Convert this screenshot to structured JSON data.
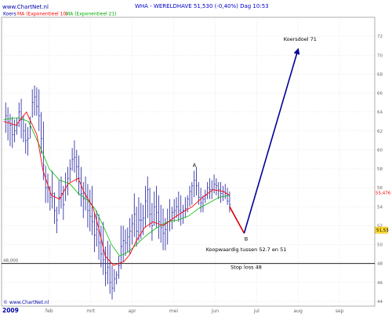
{
  "header": {
    "watermark": "www.ChartNet.nl",
    "title": "WHA - WERELDHAVE    51,530 (-0,40%)    Dag  10:53",
    "legend_koers": "Koers",
    "legend_ma10": "MA (Exponentieel 10)",
    "legend_ma21": "MA (Exponentieel 21)"
  },
  "footer": {
    "copyright": "© www.ChartNet.nl",
    "year": "2009"
  },
  "colors": {
    "price": "#3333aa",
    "ma10": "#ff0000",
    "ma21": "#00bb00",
    "forecast_up": "#000099",
    "forecast_down": "#dd0000",
    "title": "#0000cc",
    "legend_ma10": "#ff0000",
    "legend_ma21": "#00aa00",
    "axis_text": "#666666",
    "badge_bg": "#ffdd33"
  },
  "chart_data": {
    "type": "line",
    "x_labels": [
      "feb",
      "mrt",
      "apr",
      "mei",
      "jun",
      "jul",
      "aug",
      "sep"
    ],
    "y_ticks": [
      44,
      46,
      48,
      50,
      52,
      54,
      56,
      58,
      60,
      62,
      64,
      66,
      68,
      70,
      72
    ],
    "ylim": [
      43.5,
      74
    ],
    "x_month_values": [
      1,
      2,
      3,
      4,
      5,
      6,
      7,
      8
    ],
    "xlim": [
      -0.15,
      8.85
    ],
    "price_labels": [
      "55,476",
      "51,53"
    ],
    "price_label_values": [
      55.476,
      51.53
    ],
    "hline": {
      "value": 48.0,
      "left_label": "48,000",
      "label": "Stop loss 48"
    },
    "annotations": [
      {
        "text": "Koersdoel 71",
        "x": 7.05,
        "y": 71.5
      },
      {
        "text": "A",
        "x": 4.5,
        "y": 58.2
      },
      {
        "text": "B",
        "x": 5.75,
        "y": 50.4
      },
      {
        "text": "Koopwaardig tussen 52.7 en 51",
        "x": 5.75,
        "y": 49.3
      }
    ],
    "forecast_down": [
      [
        5.35,
        54.0
      ],
      [
        5.7,
        51.2
      ]
    ],
    "forecast_up": [
      [
        5.7,
        51.2
      ],
      [
        7.0,
        70.6
      ]
    ],
    "series": [
      {
        "kind": "ohlc",
        "high": [
          65.0,
          64.5,
          63.8,
          63.5,
          63.2,
          63.4,
          65.0,
          65.4,
          63.6,
          62.8,
          62.4,
          63.5,
          66.4,
          66.8,
          66.6,
          66.4,
          64.0,
          63.0,
          58.3,
          57.5,
          56.2,
          57.8,
          55.5,
          54.0,
          56.8,
          57.2,
          56.2,
          57.6,
          58.2,
          59.0,
          60.2,
          61.0,
          60.0,
          59.4,
          58.2,
          56.6,
          57.2,
          56.4,
          55.8,
          56.2,
          53.4,
          53.6,
          53.2,
          52.0,
          52.4,
          49.8,
          50.4,
          50.0,
          47.8,
          47.4,
          47.2,
          48.8,
          52.0,
          52.0,
          51.6,
          51.8,
          52.8,
          53.2,
          55.4,
          54.0,
          55.0,
          54.4,
          54.2,
          56.2,
          57.2,
          56.0,
          54.4,
          55.6,
          56.2,
          55.2,
          54.2,
          53.8,
          52.8,
          53.8,
          54.8,
          54.0,
          54.8,
          55.0,
          55.6,
          55.2,
          54.2,
          55.0,
          55.2,
          56.2,
          56.6,
          57.8,
          58.2,
          56.6,
          56.0,
          55.2,
          55.8,
          56.6,
          57.0,
          56.8,
          57.4,
          57.0,
          56.6,
          56.6,
          56.2,
          56.4,
          56.0,
          55.6
        ],
        "low": [
          61.8,
          61.0,
          60.4,
          60.2,
          60.8,
          61.6,
          62.4,
          61.2,
          60.8,
          59.6,
          59.4,
          61.2,
          63.4,
          63.6,
          63.6,
          62.0,
          59.6,
          56.8,
          54.4,
          54.4,
          53.6,
          53.8,
          52.2,
          51.2,
          53.2,
          53.8,
          52.6,
          54.6,
          55.2,
          56.6,
          57.8,
          57.6,
          56.6,
          55.2,
          54.0,
          52.8,
          53.6,
          51.8,
          51.4,
          51.0,
          49.2,
          49.8,
          48.4,
          47.6,
          46.8,
          45.6,
          45.8,
          44.8,
          44.2,
          45.0,
          45.8,
          46.4,
          47.4,
          48.2,
          48.8,
          49.2,
          49.0,
          50.0,
          50.8,
          49.8,
          50.4,
          50.6,
          51.0,
          51.8,
          52.8,
          51.8,
          50.4,
          52.0,
          51.8,
          50.6,
          50.2,
          49.4,
          49.4,
          50.0,
          51.4,
          51.6,
          52.4,
          52.8,
          52.4,
          52.0,
          52.2,
          52.8,
          53.4,
          54.0,
          54.2,
          55.0,
          55.2,
          54.2,
          53.4,
          53.4,
          54.4,
          54.8,
          54.8,
          54.8,
          55.4,
          55.2,
          54.8,
          54.4,
          54.6,
          54.8,
          54.2,
          53.4
        ],
        "close": [
          63.6,
          63.0,
          62.6,
          61.6,
          62.0,
          62.6,
          64.0,
          63.2,
          62.0,
          61.0,
          61.2,
          62.4,
          65.0,
          65.6,
          64.6,
          63.6,
          61.2,
          58.4,
          56.0,
          56.0,
          55.0,
          55.4,
          53.6,
          52.6,
          55.0,
          55.4,
          54.2,
          56.0,
          57.0,
          58.0,
          59.0,
          59.2,
          58.2,
          57.0,
          55.4,
          54.8,
          55.2,
          53.6,
          53.0,
          52.4,
          51.0,
          51.6,
          50.2,
          49.0,
          48.4,
          47.0,
          47.6,
          46.0,
          45.4,
          46.4,
          46.8,
          47.8,
          49.8,
          50.4,
          50.2,
          50.8,
          51.4,
          52.2,
          53.2,
          51.4,
          52.6,
          52.6,
          52.8,
          54.6,
          55.8,
          53.2,
          52.0,
          54.0,
          53.4,
          52.4,
          51.8,
          51.2,
          51.6,
          52.4,
          52.6,
          53.4,
          53.6,
          54.0,
          53.6,
          53.4,
          53.6,
          53.8,
          54.8,
          55.6,
          56.2,
          56.8,
          56.2,
          55.0,
          54.4,
          54.8,
          55.2,
          56.0,
          55.8,
          55.8,
          56.4,
          56.2,
          55.8,
          55.4,
          55.6,
          55.4,
          54.6,
          54.2
        ]
      },
      {
        "name": "MA (Exponentieel 10)",
        "values": [
          [
            -0.1,
            63.0
          ],
          [
            0.2,
            62.6
          ],
          [
            0.45,
            64.0
          ],
          [
            0.7,
            61.6
          ],
          [
            0.85,
            57.8
          ],
          [
            1.05,
            55.2
          ],
          [
            1.25,
            54.8
          ],
          [
            1.45,
            56.4
          ],
          [
            1.7,
            57.0
          ],
          [
            1.85,
            55.4
          ],
          [
            2.05,
            54.0
          ],
          [
            2.2,
            51.6
          ],
          [
            2.35,
            48.8
          ],
          [
            2.55,
            47.8
          ],
          [
            2.8,
            48.2
          ],
          [
            2.95,
            49.0
          ],
          [
            3.1,
            50.4
          ],
          [
            3.3,
            51.8
          ],
          [
            3.5,
            52.4
          ],
          [
            3.75,
            52.0
          ],
          [
            4.0,
            52.8
          ],
          [
            4.2,
            53.4
          ],
          [
            4.45,
            54.0
          ],
          [
            4.7,
            55.0
          ],
          [
            4.95,
            55.8
          ],
          [
            5.2,
            55.6
          ],
          [
            5.35,
            55.2
          ]
        ]
      },
      {
        "name": "MA (Exponentieel 21)",
        "values": [
          [
            -0.1,
            63.2
          ],
          [
            0.25,
            63.4
          ],
          [
            0.5,
            63.0
          ],
          [
            0.75,
            60.6
          ],
          [
            1.0,
            58.0
          ],
          [
            1.25,
            56.8
          ],
          [
            1.5,
            56.4
          ],
          [
            1.7,
            55.4
          ],
          [
            1.9,
            54.8
          ],
          [
            2.1,
            53.8
          ],
          [
            2.3,
            52.0
          ],
          [
            2.5,
            50.0
          ],
          [
            2.7,
            48.8
          ],
          [
            2.9,
            49.2
          ],
          [
            3.1,
            50.0
          ],
          [
            3.35,
            51.0
          ],
          [
            3.6,
            51.8
          ],
          [
            3.85,
            52.4
          ],
          [
            4.1,
            52.6
          ],
          [
            4.35,
            53.0
          ],
          [
            4.6,
            53.8
          ],
          [
            4.85,
            54.4
          ],
          [
            5.1,
            55.0
          ],
          [
            5.35,
            55.2
          ]
        ]
      }
    ]
  }
}
